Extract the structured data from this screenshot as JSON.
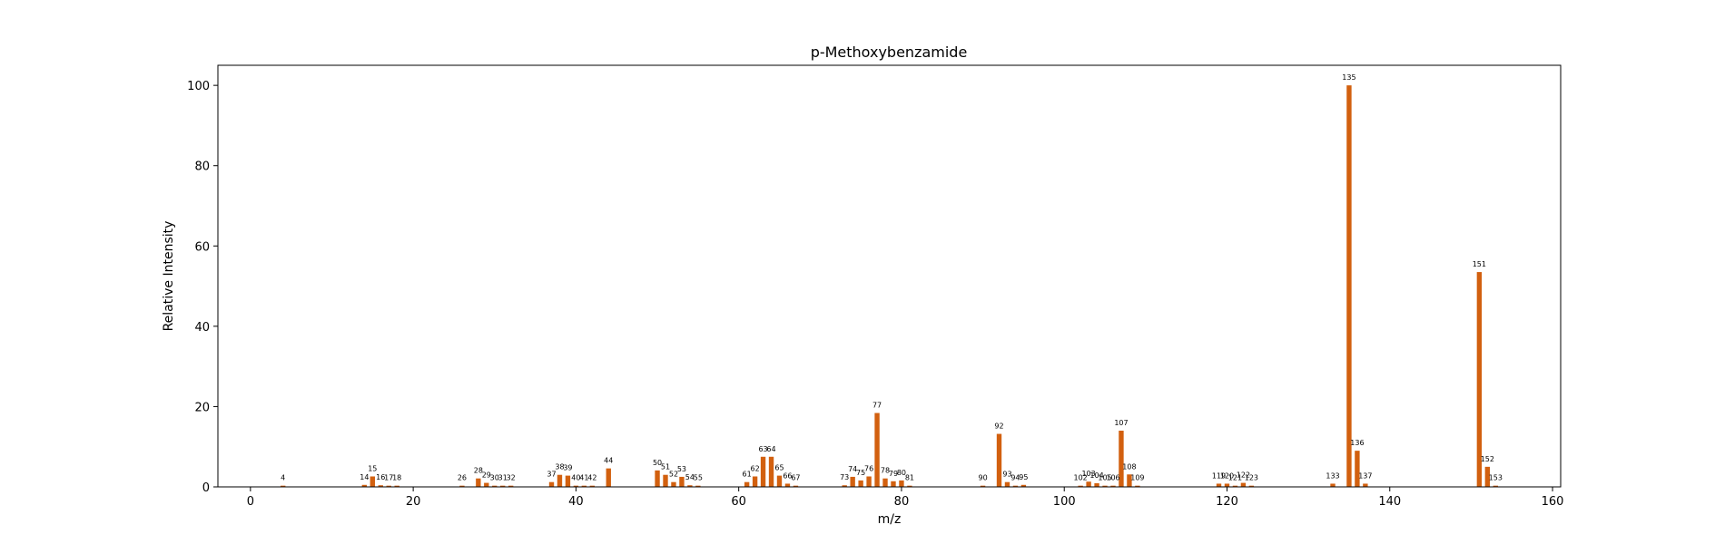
{
  "chart_data": {
    "type": "bar",
    "title": "p-Methoxybenzamide",
    "xlabel": "m/z",
    "ylabel": "Relative Intensity",
    "xlim": [
      -4,
      161
    ],
    "ylim": [
      0,
      105
    ],
    "xticks": [
      0,
      20,
      40,
      60,
      80,
      100,
      120,
      140,
      160
    ],
    "yticks": [
      0,
      20,
      40,
      60,
      80,
      100
    ],
    "bar_color": "#d2600f",
    "grid": false,
    "legend": "none",
    "x": [
      4,
      14,
      15,
      16,
      17,
      18,
      26,
      28,
      29,
      30,
      31,
      32,
      37,
      38,
      39,
      40,
      41,
      42,
      44,
      50,
      51,
      52,
      53,
      54,
      55,
      61,
      62,
      63,
      64,
      65,
      66,
      67,
      73,
      74,
      75,
      76,
      77,
      78,
      79,
      80,
      81,
      90,
      92,
      93,
      94,
      95,
      102,
      103,
      104,
      105,
      106,
      107,
      108,
      109,
      119,
      120,
      121,
      122,
      123,
      133,
      135,
      136,
      137,
      151,
      152,
      153
    ],
    "values": [
      0.3,
      0.5,
      2.6,
      0.4,
      0.3,
      0.3,
      0.3,
      2.1,
      1.0,
      0.3,
      0.3,
      0.3,
      1.2,
      3.0,
      2.8,
      0.3,
      0.3,
      0.3,
      4.6,
      4.1,
      3.0,
      1.2,
      2.5,
      0.4,
      0.3,
      1.2,
      2.6,
      7.5,
      7.5,
      2.8,
      0.8,
      0.3,
      0.4,
      2.5,
      1.6,
      2.6,
      18.4,
      2.1,
      1.4,
      1.6,
      0.3,
      0.3,
      13.2,
      1.2,
      0.3,
      0.5,
      0.3,
      1.3,
      0.9,
      0.3,
      0.3,
      14.0,
      3.1,
      0.3,
      0.8,
      0.8,
      0.3,
      1.0,
      0.3,
      0.8,
      100.0,
      9.0,
      0.8,
      53.5,
      5.0,
      0.3
    ]
  }
}
